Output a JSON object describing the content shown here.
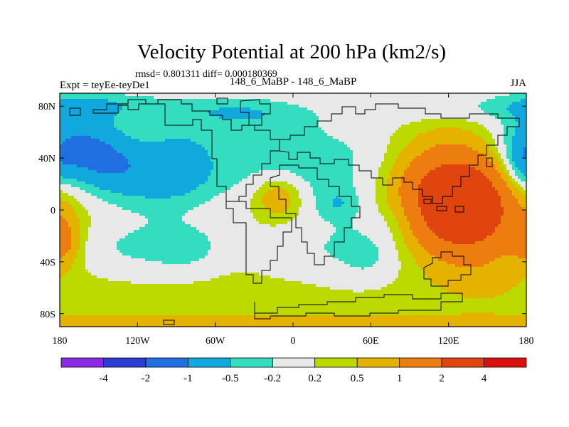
{
  "chart_data": {
    "type": "heatmap",
    "title": "Velocity Potential at 200 hPa (km2/s)",
    "stats": "rmsd= 0.801311 diff= 0.000180369",
    "subtitle_left": "Expt = teyEe-teyDe1",
    "subtitle_center": "148_6_MaBP - 148_6_MaBP",
    "subtitle_right": "JJA",
    "x_ticks": [
      {
        "label": "180",
        "value": -180
      },
      {
        "label": "120W",
        "value": -120
      },
      {
        "label": "60W",
        "value": -60
      },
      {
        "label": "0",
        "value": 0
      },
      {
        "label": "60E",
        "value": 60
      },
      {
        "label": "120E",
        "value": 120
      },
      {
        "label": "180",
        "value": 180
      }
    ],
    "y_ticks": [
      {
        "label": "80N",
        "value": 80
      },
      {
        "label": "40N",
        "value": 40
      },
      {
        "label": "0",
        "value": 0
      },
      {
        "label": "40S",
        "value": -40
      },
      {
        "label": "80S",
        "value": -80
      }
    ],
    "xlim": [
      -180,
      180
    ],
    "ylim": [
      -90,
      90
    ],
    "colorbar": {
      "colors": [
        "#8a2be2",
        "#2e3cd6",
        "#1f6fe0",
        "#11a9dd",
        "#34dcc0",
        "#e8e8e8",
        "#bcd900",
        "#e6b200",
        "#ee7d10",
        "#e04510",
        "#dc0f0f"
      ],
      "labels": [
        "-4",
        "-2",
        "-1",
        "-0.5",
        "-0.2",
        "0.2",
        "0.5",
        "1",
        "2",
        "4"
      ]
    },
    "field": {
      "lon_range": [
        -180,
        180
      ],
      "lat_range": [
        -90,
        90
      ],
      "background": 0.35,
      "features": [
        {
          "lon": -168,
          "lat": 48,
          "amp": -1.3,
          "slon": 26,
          "slat": 22
        },
        {
          "lon": -138,
          "lat": 35,
          "amp": -0.4,
          "slon": 22,
          "slat": 18
        },
        {
          "lon": -110,
          "lat": 25,
          "amp": -0.7,
          "slon": 30,
          "slat": 22
        },
        {
          "lon": -85,
          "lat": 40,
          "amp": -0.45,
          "slon": 18,
          "slat": 20
        },
        {
          "lon": -125,
          "lat": -30,
          "amp": -0.55,
          "slon": 45,
          "slat": 16
        },
        {
          "lon": -80,
          "lat": -30,
          "amp": -0.35,
          "slon": 20,
          "slat": 14
        },
        {
          "lon": -150,
          "lat": 82,
          "amp": -0.6,
          "slon": 60,
          "slat": 9
        },
        {
          "lon": -40,
          "lat": 75,
          "amp": -0.55,
          "slon": 35,
          "slat": 10
        },
        {
          "lon": 5,
          "lat": 35,
          "amp": -0.75,
          "slon": 70,
          "slat": 30
        },
        {
          "lon": -12,
          "lat": 10,
          "amp": 0.9,
          "slon": 14,
          "slat": 12
        },
        {
          "lon": -2,
          "lat": -35,
          "amp": -0.25,
          "slon": 28,
          "slat": 14
        },
        {
          "lon": 35,
          "lat": 5,
          "amp": -0.4,
          "slon": 12,
          "slat": 9
        },
        {
          "lon": 55,
          "lat": -30,
          "amp": -0.55,
          "slon": 30,
          "slat": 20
        },
        {
          "lon": 55,
          "lat": -36,
          "amp": -0.25,
          "slon": 8,
          "slat": 7
        },
        {
          "lon": 85,
          "lat": -5,
          "amp": -0.25,
          "slon": 14,
          "slat": 12
        },
        {
          "lon": 128,
          "lat": 5,
          "amp": 2.9,
          "slon": 28,
          "slat": 25
        },
        {
          "lon": 110,
          "lat": 25,
          "amp": 0.6,
          "slon": 30,
          "slat": 25
        },
        {
          "lon": 150,
          "lat": -20,
          "amp": 0.45,
          "slon": 30,
          "slat": 30
        },
        {
          "lon": 175,
          "lat": 30,
          "amp": -0.6,
          "slon": 10,
          "slat": 15
        },
        {
          "lon": -178,
          "lat": -25,
          "amp": 0.9,
          "slon": 9,
          "slat": 12
        },
        {
          "lon": 100,
          "lat": 78,
          "amp": -0.25,
          "slon": 60,
          "slat": 8
        },
        {
          "lon": 0,
          "lat": -87,
          "amp": 0.3,
          "slon": 200,
          "slat": 5
        }
      ]
    }
  }
}
